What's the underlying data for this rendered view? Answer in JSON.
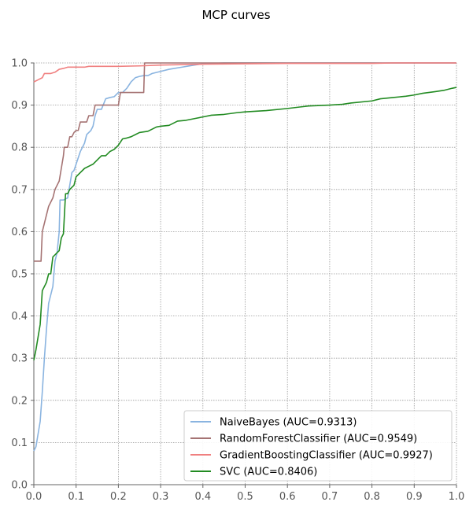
{
  "chart_data": {
    "type": "line",
    "title": "MCP curves",
    "xlabel": "",
    "ylabel": "",
    "xlim": [
      0.0,
      1.0
    ],
    "ylim": [
      0.0,
      1.0
    ],
    "grid": true,
    "legend_position": "lower-right",
    "x_ticks": [
      "0.0",
      "0.1",
      "0.2",
      "0.3",
      "0.4",
      "0.5",
      "0.6",
      "0.7",
      "0.8",
      "0.9",
      "1.0"
    ],
    "y_ticks": [
      "0.0",
      "0.1",
      "0.2",
      "0.3",
      "0.4",
      "0.5",
      "0.6",
      "0.7",
      "0.8",
      "0.9",
      "1.0"
    ],
    "series": [
      {
        "name": "NaiveBayes (AUC=0.9313)",
        "color": "#8ab4e0",
        "points": [
          [
            0,
            0.08
          ],
          [
            0.005,
            0.09
          ],
          [
            0.01,
            0.12
          ],
          [
            0.015,
            0.15
          ],
          [
            0.02,
            0.22
          ],
          [
            0.025,
            0.3
          ],
          [
            0.03,
            0.37
          ],
          [
            0.035,
            0.43
          ],
          [
            0.04,
            0.45
          ],
          [
            0.045,
            0.47
          ],
          [
            0.05,
            0.53
          ],
          [
            0.055,
            0.55
          ],
          [
            0.06,
            0.6
          ],
          [
            0.062,
            0.675
          ],
          [
            0.07,
            0.675
          ],
          [
            0.08,
            0.68
          ],
          [
            0.09,
            0.74
          ],
          [
            0.095,
            0.745
          ],
          [
            0.1,
            0.76
          ],
          [
            0.11,
            0.79
          ],
          [
            0.12,
            0.81
          ],
          [
            0.125,
            0.83
          ],
          [
            0.135,
            0.84
          ],
          [
            0.14,
            0.85
          ],
          [
            0.145,
            0.875
          ],
          [
            0.15,
            0.89
          ],
          [
            0.16,
            0.89
          ],
          [
            0.17,
            0.915
          ],
          [
            0.18,
            0.918
          ],
          [
            0.19,
            0.92
          ],
          [
            0.2,
            0.93
          ],
          [
            0.21,
            0.93
          ],
          [
            0.22,
            0.94
          ],
          [
            0.23,
            0.955
          ],
          [
            0.24,
            0.965
          ],
          [
            0.25,
            0.968
          ],
          [
            0.26,
            0.97
          ],
          [
            0.27,
            0.97
          ],
          [
            0.28,
            0.975
          ],
          [
            0.3,
            0.98
          ],
          [
            0.32,
            0.985
          ],
          [
            0.35,
            0.99
          ],
          [
            0.38,
            0.995
          ],
          [
            0.4,
            0.998
          ],
          [
            0.45,
            1.0
          ],
          [
            1.0,
            1.0
          ]
        ]
      },
      {
        "name": "RandomForestClassifier (AUC=0.9549)",
        "color": "#a57373",
        "points": [
          [
            0,
            0.53
          ],
          [
            0.017,
            0.53
          ],
          [
            0.02,
            0.6
          ],
          [
            0.03,
            0.64
          ],
          [
            0.035,
            0.66
          ],
          [
            0.04,
            0.67
          ],
          [
            0.045,
            0.68
          ],
          [
            0.05,
            0.7
          ],
          [
            0.06,
            0.72
          ],
          [
            0.065,
            0.75
          ],
          [
            0.07,
            0.78
          ],
          [
            0.072,
            0.8
          ],
          [
            0.08,
            0.8
          ],
          [
            0.085,
            0.825
          ],
          [
            0.09,
            0.825
          ],
          [
            0.095,
            0.835
          ],
          [
            0.1,
            0.84
          ],
          [
            0.105,
            0.84
          ],
          [
            0.11,
            0.86
          ],
          [
            0.125,
            0.86
          ],
          [
            0.13,
            0.875
          ],
          [
            0.14,
            0.875
          ],
          [
            0.145,
            0.9
          ],
          [
            0.2,
            0.9
          ],
          [
            0.205,
            0.93
          ],
          [
            0.26,
            0.93
          ],
          [
            0.262,
            1.0
          ],
          [
            1.0,
            1.0
          ]
        ]
      },
      {
        "name": "GradientBoostingClassifier (AUC=0.9927)",
        "color": "#f08080",
        "points": [
          [
            0,
            0.955
          ],
          [
            0.01,
            0.96
          ],
          [
            0.02,
            0.965
          ],
          [
            0.025,
            0.975
          ],
          [
            0.04,
            0.975
          ],
          [
            0.05,
            0.978
          ],
          [
            0.06,
            0.985
          ],
          [
            0.07,
            0.987
          ],
          [
            0.08,
            0.99
          ],
          [
            0.12,
            0.99
          ],
          [
            0.13,
            0.992
          ],
          [
            0.2,
            0.992
          ],
          [
            0.25,
            0.993
          ],
          [
            0.3,
            0.995
          ],
          [
            0.4,
            0.997
          ],
          [
            0.5,
            0.998
          ],
          [
            0.6,
            0.999
          ],
          [
            0.8,
            0.999
          ],
          [
            0.85,
            1.0
          ],
          [
            1.0,
            1.0
          ]
        ]
      },
      {
        "name": "SVC (AUC=0.8406)",
        "color": "#228b22",
        "points": [
          [
            0,
            0.295
          ],
          [
            0.005,
            0.32
          ],
          [
            0.01,
            0.35
          ],
          [
            0.015,
            0.38
          ],
          [
            0.02,
            0.46
          ],
          [
            0.03,
            0.48
          ],
          [
            0.035,
            0.5
          ],
          [
            0.04,
            0.5
          ],
          [
            0.045,
            0.54
          ],
          [
            0.05,
            0.545
          ],
          [
            0.055,
            0.55
          ],
          [
            0.06,
            0.555
          ],
          [
            0.065,
            0.585
          ],
          [
            0.07,
            0.595
          ],
          [
            0.075,
            0.69
          ],
          [
            0.08,
            0.69
          ],
          [
            0.085,
            0.7
          ],
          [
            0.09,
            0.705
          ],
          [
            0.095,
            0.71
          ],
          [
            0.1,
            0.73
          ],
          [
            0.11,
            0.74
          ],
          [
            0.12,
            0.75
          ],
          [
            0.13,
            0.755
          ],
          [
            0.14,
            0.76
          ],
          [
            0.15,
            0.77
          ],
          [
            0.16,
            0.78
          ],
          [
            0.17,
            0.78
          ],
          [
            0.18,
            0.79
          ],
          [
            0.19,
            0.795
          ],
          [
            0.2,
            0.805
          ],
          [
            0.21,
            0.82
          ],
          [
            0.22,
            0.822
          ],
          [
            0.23,
            0.825
          ],
          [
            0.24,
            0.83
          ],
          [
            0.25,
            0.835
          ],
          [
            0.27,
            0.838
          ],
          [
            0.29,
            0.848
          ],
          [
            0.3,
            0.85
          ],
          [
            0.32,
            0.852
          ],
          [
            0.34,
            0.862
          ],
          [
            0.36,
            0.864
          ],
          [
            0.38,
            0.868
          ],
          [
            0.4,
            0.872
          ],
          [
            0.42,
            0.876
          ],
          [
            0.45,
            0.878
          ],
          [
            0.48,
            0.882
          ],
          [
            0.5,
            0.884
          ],
          [
            0.55,
            0.887
          ],
          [
            0.6,
            0.892
          ],
          [
            0.65,
            0.898
          ],
          [
            0.7,
            0.9
          ],
          [
            0.73,
            0.902
          ],
          [
            0.75,
            0.905
          ],
          [
            0.8,
            0.91
          ],
          [
            0.82,
            0.915
          ],
          [
            0.85,
            0.918
          ],
          [
            0.88,
            0.921
          ],
          [
            0.9,
            0.924
          ],
          [
            0.92,
            0.928
          ],
          [
            0.95,
            0.932
          ],
          [
            0.97,
            0.935
          ],
          [
            0.99,
            0.94
          ],
          [
            1.0,
            0.942
          ]
        ]
      }
    ]
  }
}
